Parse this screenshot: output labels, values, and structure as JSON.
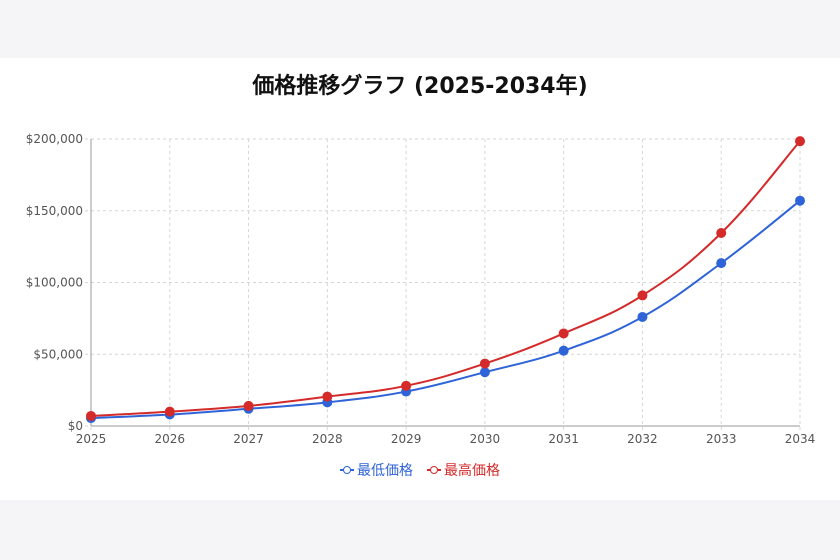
{
  "chart_data": {
    "type": "line",
    "title": "価格推移グラフ (2025-2034年)",
    "xlabel": "",
    "ylabel": "",
    "categories": [
      "2025",
      "2026",
      "2027",
      "2028",
      "2029",
      "2030",
      "2031",
      "2032",
      "2033",
      "2034"
    ],
    "series": [
      {
        "name": "最低価格",
        "color": "#2f64d8",
        "values": [
          5500,
          8000,
          12000,
          16500,
          24000,
          37500,
          52500,
          76000,
          113500,
          157000
        ]
      },
      {
        "name": "最高価格",
        "color": "#d42a2a",
        "values": [
          7000,
          10000,
          14000,
          20500,
          28000,
          43500,
          64500,
          91000,
          134500,
          198500
        ]
      }
    ],
    "ylim": [
      0,
      200000
    ],
    "y_ticks": [
      "$0",
      "$50,000",
      "$100,000",
      "$150,000",
      "$200,000"
    ],
    "y_tick_values": [
      0,
      50000,
      100000,
      150000,
      200000
    ],
    "grid": true,
    "legend_position": "bottom-center"
  }
}
